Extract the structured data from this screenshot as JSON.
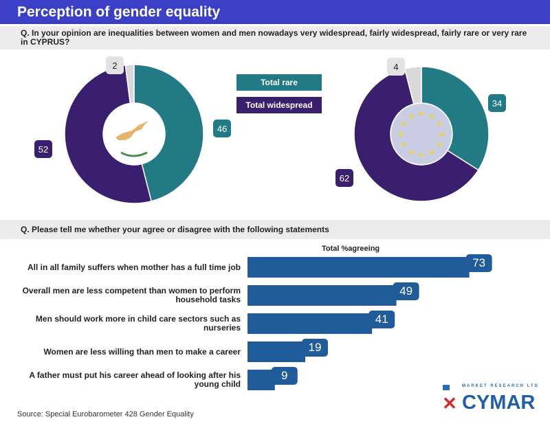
{
  "title": "Perception of gender equality",
  "question1": "Q. In your opinion are inequalities between women and men nowadays very widespread, fairly widespread, fairly rare or very rare in CYPRUS?",
  "question2": "Q. Please tell me whether your agree or disagree with the following statements",
  "source": "Source: Special Eurobarometer 428 Gender Equality",
  "logo": {
    "text": "CYMAR",
    "subtitle": "MARKET RESEARCH LTD"
  },
  "colors": {
    "rare": "#227a84",
    "widespread": "#3a1f6e",
    "dk": "#d9d9d9",
    "bar": "#1f5c99",
    "header": "#3b3fc6"
  },
  "chart_data": [
    {
      "type": "pie",
      "center_icon": "cyprus-map",
      "legend": [
        "Total rare",
        "Total widespread"
      ],
      "slices": [
        {
          "label": "Total rare",
          "value": 46
        },
        {
          "label": "Total widespread",
          "value": 52
        },
        {
          "label": "",
          "value": 2
        }
      ]
    },
    {
      "type": "pie",
      "center_icon": "eu-flag",
      "slices": [
        {
          "label": "Total rare",
          "value": 34
        },
        {
          "label": "Total widespread",
          "value": 62
        },
        {
          "label": "",
          "value": 4
        }
      ]
    },
    {
      "type": "bar",
      "orientation": "horizontal",
      "title": "Total %agreeing",
      "categories": [
        "All in all family suffers when mother has a full time job",
        "Overall men are less competent than women to perform household tasks",
        "Men should work more in child care sectors such as nurseries",
        "Women are less willing than men to make a career",
        "A father must put his career ahead of looking after his young child"
      ],
      "values": [
        73,
        49,
        41,
        19,
        9
      ]
    }
  ]
}
